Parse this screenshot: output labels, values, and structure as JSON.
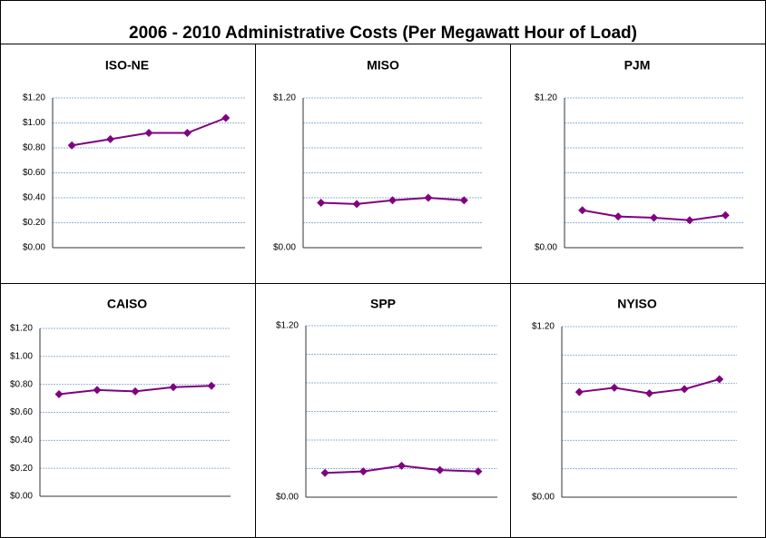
{
  "title": "2006 - 2010 Administrative Costs (Per Megawatt Hour of Load)",
  "chart_data": [
    {
      "type": "line",
      "title": "ISO-NE",
      "categories": [
        null,
        null,
        null,
        null,
        null
      ],
      "series": [
        {
          "color": "#800080",
          "values": [
            0.82,
            0.87,
            0.92,
            0.92,
            1.04
          ]
        }
      ],
      "ylim": [
        0,
        1.2
      ],
      "yticks": [
        {
          "value": 0,
          "label": "$0.00"
        },
        {
          "value": 0.2,
          "label": "$0.20"
        },
        {
          "value": 0.4,
          "label": "$0.40"
        },
        {
          "value": 0.6,
          "label": "$0.60"
        },
        {
          "value": 0.8,
          "label": "$0.80"
        },
        {
          "value": 1.0,
          "label": "$1.00"
        },
        {
          "value": 1.2,
          "label": "$1.20"
        }
      ],
      "grid": true
    },
    {
      "type": "line",
      "title": "MISO",
      "categories": [
        null,
        null,
        null,
        null,
        null
      ],
      "series": [
        {
          "color": "#800080",
          "values": [
            0.36,
            0.35,
            0.38,
            0.4,
            0.38
          ]
        }
      ],
      "ylim": [
        0,
        1.2
      ],
      "yticks": [
        {
          "value": 0,
          "label": "$0.00"
        },
        {
          "value": 1.2,
          "label": "$1.20"
        }
      ],
      "minor_yticks": [
        0.2,
        0.4,
        0.6,
        0.8,
        1.0
      ],
      "grid": true
    },
    {
      "type": "line",
      "title": "PJM",
      "categories": [
        null,
        null,
        null,
        null,
        null
      ],
      "series": [
        {
          "color": "#800080",
          "values": [
            0.3,
            0.25,
            0.24,
            0.22,
            0.26
          ]
        }
      ],
      "ylim": [
        0,
        1.2
      ],
      "yticks": [
        {
          "value": 0,
          "label": "$0.00"
        },
        {
          "value": 1.2,
          "label": "$1.20"
        }
      ],
      "minor_yticks": [
        0.2,
        0.4,
        0.6,
        0.8,
        1.0
      ],
      "grid": true
    },
    {
      "type": "line",
      "title": "CAISO",
      "categories": [
        null,
        null,
        null,
        null,
        null
      ],
      "series": [
        {
          "color": "#800080",
          "values": [
            0.73,
            0.76,
            0.75,
            0.78,
            0.79
          ]
        }
      ],
      "ylim": [
        0,
        1.2
      ],
      "yticks": [
        {
          "value": 0,
          "label": "$0.00"
        },
        {
          "value": 0.2,
          "label": "$0.20"
        },
        {
          "value": 0.4,
          "label": "$0.40"
        },
        {
          "value": 0.6,
          "label": "$0.60"
        },
        {
          "value": 0.8,
          "label": "$0.80"
        },
        {
          "value": 1.0,
          "label": "$1.00"
        },
        {
          "value": 1.2,
          "label": "$1.20"
        }
      ],
      "grid": true
    },
    {
      "type": "line",
      "title": "SPP",
      "categories": [
        null,
        null,
        null,
        null,
        null
      ],
      "series": [
        {
          "color": "#800080",
          "values": [
            0.17,
            0.18,
            0.22,
            0.19,
            0.18
          ]
        }
      ],
      "ylim": [
        0,
        1.2
      ],
      "yticks": [
        {
          "value": 0,
          "label": "$0.00"
        },
        {
          "value": 1.2,
          "label": "$1.20"
        }
      ],
      "minor_yticks": [
        0.2,
        0.4,
        0.6,
        0.8,
        1.0
      ],
      "grid": true
    },
    {
      "type": "line",
      "title": "NYISO",
      "categories": [
        null,
        null,
        null,
        null,
        null
      ],
      "series": [
        {
          "color": "#800080",
          "values": [
            0.74,
            0.77,
            0.73,
            0.76,
            0.83
          ]
        }
      ],
      "ylim": [
        0,
        1.2
      ],
      "yticks": [
        {
          "value": 0,
          "label": "$0.00"
        },
        {
          "value": 1.2,
          "label": "$1.20"
        }
      ],
      "minor_yticks": [
        0.2,
        0.4,
        0.6,
        0.8,
        1.0
      ],
      "grid": true
    }
  ]
}
